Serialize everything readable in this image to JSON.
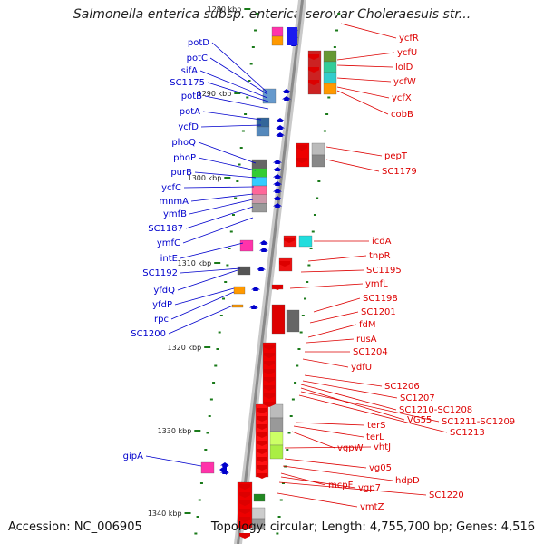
{
  "title": "Salmonella enterica subsp. enterica serovar Choleraesuis str...",
  "footer": {
    "accession": "Accession: NC_006905",
    "summary": "Topology: circular; Length: 4,755,700 bp; Genes: 4,516"
  },
  "scale_labels": [
    "1280 kbp",
    "1290 kbp",
    "1300 kbp",
    "1310 kbp",
    "1320 kbp",
    "1330 kbp",
    "1340 kbp"
  ],
  "forward_genes": [
    "potD",
    "potC",
    "sifA",
    "SC1175",
    "potB",
    "potA",
    "ycfD",
    "phoQ",
    "phoP",
    "purB",
    "ycfC",
    "mnmA",
    "ymfB",
    "SC1187",
    "ymfC",
    "intE",
    "SC1192",
    "yfdQ",
    "yfdP",
    "rpc",
    "SC1200",
    "gipA"
  ],
  "reverse_genes": [
    "ycfR",
    "ycfU",
    "lolD",
    "ycfW",
    "ycfX",
    "cobB",
    "pepT",
    "SC1179",
    "icdA",
    "tnpR",
    "SC1195",
    "ymfL",
    "SC1198",
    "SC1201",
    "fdM",
    "rusA",
    "SC1204",
    "ydfU",
    "SC1206",
    "SC1207",
    "SC1210-SC1208",
    "VG55",
    "SC1211-SC1209",
    "SC1213",
    "terS",
    "terL",
    "vgpW",
    "vhtJ",
    "vg05",
    "hdpD",
    "mcpF",
    "vgp7",
    "SC1220",
    "vmtZ"
  ],
  "colors": {
    "forward": "#0000cc",
    "reverse": "#dd0000",
    "backbone": "#999999",
    "tick": "#1a7a1a"
  }
}
